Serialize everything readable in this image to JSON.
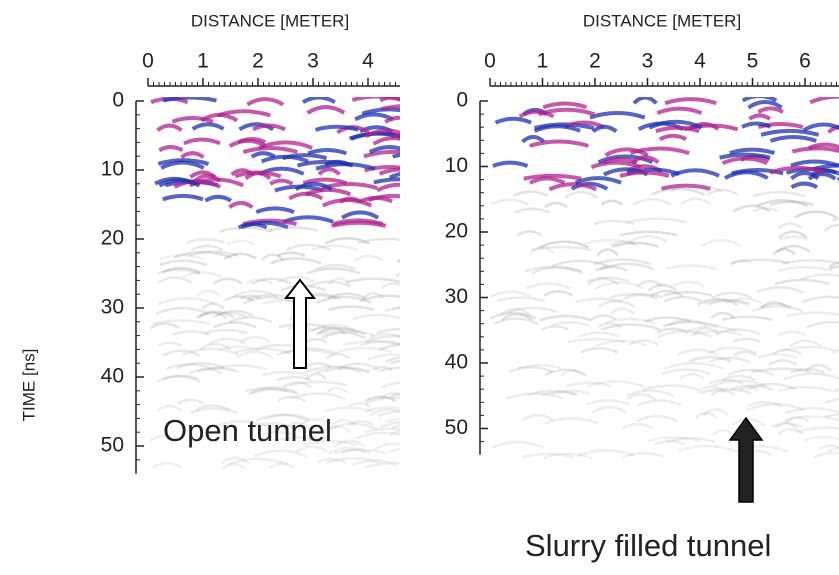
{
  "panels": [
    {
      "x_label": "DISTANCE [METER]",
      "x_ticks": [
        0,
        1,
        2,
        3,
        4
      ],
      "y_ticks": [
        0,
        10,
        20,
        30,
        40,
        50
      ],
      "y_label": "TIME [ns]",
      "annotation": "Open tunnel"
    },
    {
      "x_label": "DISTANCE [METER]",
      "x_ticks": [
        0,
        1,
        2,
        3,
        4,
        5,
        6
      ],
      "y_ticks": [
        0,
        10,
        20,
        30,
        40,
        50
      ],
      "annotation": "Slurry filled tunnel"
    }
  ]
}
